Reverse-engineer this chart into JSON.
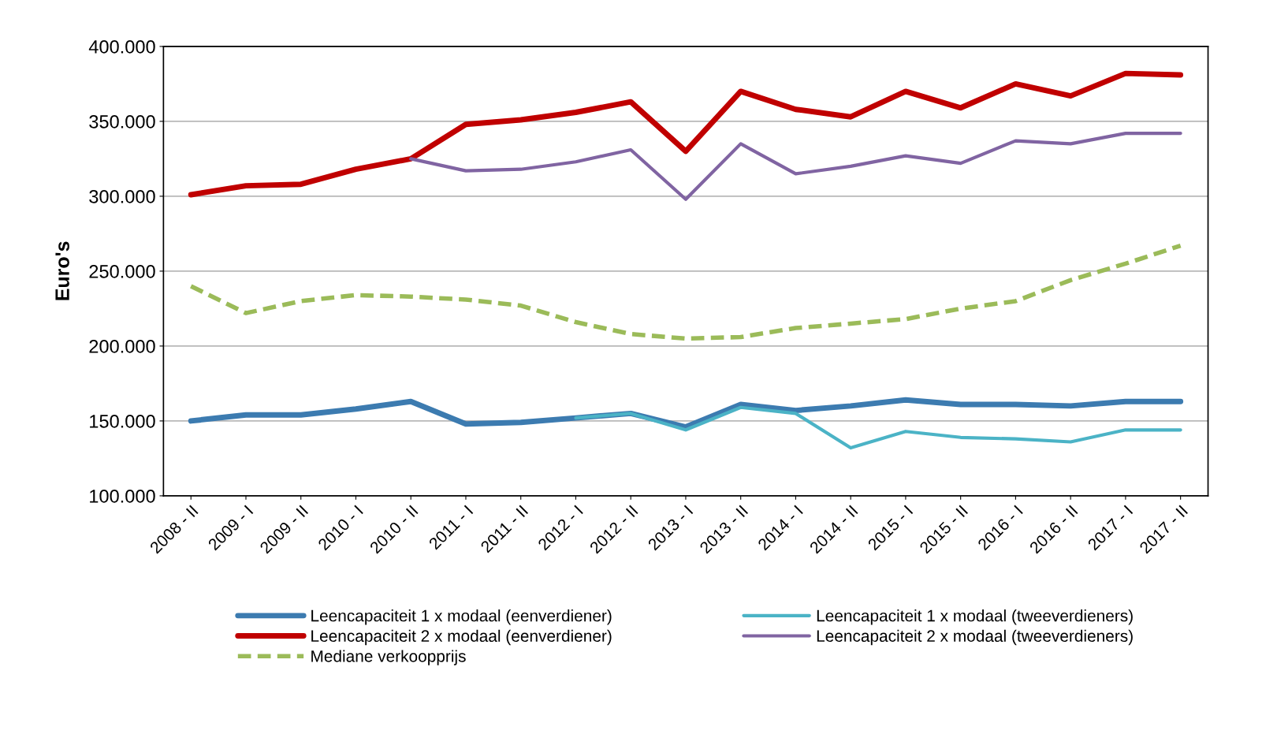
{
  "chart_data": {
    "type": "line",
    "ylabel": "Euro's",
    "categories": [
      "2008 - II",
      "2009 - I",
      "2009 - II",
      "2010 - I",
      "2010 - II",
      "2011 - I",
      "2011 - II",
      "2012 - I",
      "2012 - II",
      "2013 - I",
      "2013 - II",
      "2014 - I",
      "2014 - II",
      "2015 - I",
      "2015 - II",
      "2016 - I",
      "2016 - II",
      "2017 - I",
      "2017 - II"
    ],
    "series": [
      {
        "name": "Leencapaciteit 1 x modaal (eenverdiener)",
        "color": "#3c7bb0",
        "values": [
          150000,
          154000,
          154000,
          158000,
          163000,
          148000,
          149000,
          152000,
          155000,
          146000,
          161000,
          157000,
          160000,
          164000,
          161000,
          161000,
          160000,
          163000,
          163000
        ]
      },
      {
        "name": "Leencapaciteit 1 x modaal (tweeverdieners)",
        "color": "#4bb3c6",
        "values": [
          null,
          null,
          null,
          null,
          null,
          null,
          null,
          152000,
          155000,
          144000,
          159000,
          155000,
          132000,
          143000,
          139000,
          138000,
          136000,
          144000,
          144000
        ]
      },
      {
        "name": "Leencapaciteit 2 x modaal (eenverdiener)",
        "color": "#c00000",
        "values": [
          301000,
          307000,
          308000,
          318000,
          325000,
          348000,
          351000,
          356000,
          363000,
          330000,
          370000,
          358000,
          353000,
          370000,
          359000,
          375000,
          367000,
          382000,
          381000
        ]
      },
      {
        "name": "Leencapaciteit 2 x modaal (tweeverdieners)",
        "color": "#8064a2",
        "values": [
          null,
          null,
          null,
          null,
          325000,
          317000,
          318000,
          323000,
          331000,
          298000,
          335000,
          315000,
          320000,
          327000,
          322000,
          337000,
          335000,
          342000,
          342000
        ]
      },
      {
        "name": "Mediane verkoopprijs",
        "color": "#9bbb59",
        "line_style": "dashed",
        "values": [
          240000,
          222000,
          230000,
          234000,
          233000,
          231000,
          227000,
          216000,
          208000,
          205000,
          206000,
          212000,
          215000,
          218000,
          225000,
          230000,
          244000,
          255000,
          267000
        ]
      }
    ],
    "ylim": [
      100000,
      400000
    ],
    "yticks": [
      {
        "value": 100000,
        "label": "100.000"
      },
      {
        "value": 150000,
        "label": "150.000"
      },
      {
        "value": 200000,
        "label": "200.000"
      },
      {
        "value": 250000,
        "label": "250.000"
      },
      {
        "value": 300000,
        "label": "300.000"
      },
      {
        "value": 350000,
        "label": "350.000"
      },
      {
        "value": 400000,
        "label": "400.000"
      }
    ],
    "grid": "y",
    "legend": "bottom",
    "marker": "none",
    "line_style": "solid"
  }
}
